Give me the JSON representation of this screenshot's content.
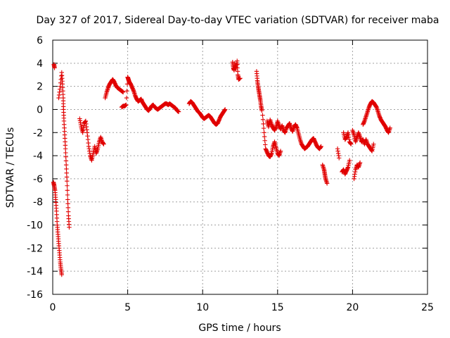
{
  "chart_data": {
    "type": "scatter",
    "title": "Day 327 of 2017, Sidereal Day-to-day VTEC variation (SDTVAR) for receiver maba",
    "xlabel": "GPS time / hours",
    "ylabel": "SDTVAR / TECUs",
    "xlim": [
      0,
      25
    ],
    "ylim": [
      -16,
      6
    ],
    "xticks": [
      0,
      5,
      10,
      15,
      20,
      25
    ],
    "yticks": [
      6,
      4,
      2,
      0,
      -2,
      -4,
      -6,
      -8,
      -10,
      -12,
      -14,
      -16
    ],
    "xtick_labels": [
      "0",
      "5",
      "10",
      "15",
      "20",
      "25"
    ],
    "ytick_labels": [
      "6",
      "4",
      "2",
      "0",
      "-2",
      "-4",
      "-6",
      "-8",
      "-10",
      "-12",
      "-14",
      "-16"
    ],
    "grid": true,
    "marker": "+",
    "marker_color": "#e00000",
    "series": [
      {
        "name": "SDTVAR",
        "segments": [
          [
            [
              0.05,
              -6.3
            ],
            [
              0.1,
              -6.6
            ],
            [
              0.15,
              -7.0
            ],
            [
              0.2,
              -7.8
            ],
            [
              0.25,
              -8.8
            ],
            [
              0.3,
              -10.0
            ],
            [
              0.35,
              -10.8
            ],
            [
              0.4,
              -11.6
            ],
            [
              0.45,
              -12.4
            ],
            [
              0.5,
              -13.2
            ],
            [
              0.55,
              -13.8
            ],
            [
              0.6,
              -14.3
            ]
          ],
          [
            [
              0.08,
              3.9
            ],
            [
              0.12,
              3.6
            ]
          ],
          [
            [
              0.4,
              1.0
            ],
            [
              0.5,
              2.0
            ],
            [
              0.6,
              3.2
            ],
            [
              0.65,
              2.2
            ],
            [
              0.7,
              1.0
            ],
            [
              0.72,
              0.0
            ],
            [
              0.75,
              -1.0
            ],
            [
              0.8,
              -2.2
            ],
            [
              0.85,
              -3.4
            ],
            [
              0.9,
              -4.8
            ],
            [
              0.95,
              -6.2
            ],
            [
              1.0,
              -7.8
            ],
            [
              1.05,
              -9.2
            ],
            [
              1.1,
              -10.2
            ]
          ],
          [
            [
              1.8,
              -0.8
            ],
            [
              1.9,
              -1.5
            ],
            [
              2.0,
              -2.0
            ],
            [
              2.1,
              -1.2
            ],
            [
              2.2,
              -1.0
            ],
            [
              2.3,
              -2.0
            ],
            [
              2.4,
              -3.2
            ],
            [
              2.5,
              -4.0
            ],
            [
              2.6,
              -4.4
            ],
            [
              2.7,
              -3.8
            ],
            [
              2.8,
              -3.2
            ],
            [
              2.9,
              -3.8
            ],
            [
              3.0,
              -3.4
            ],
            [
              3.1,
              -2.8
            ],
            [
              3.2,
              -2.4
            ],
            [
              3.3,
              -2.8
            ],
            [
              3.4,
              -3.0
            ]
          ],
          [
            [
              3.5,
              1.0
            ],
            [
              3.6,
              1.5
            ],
            [
              3.7,
              1.9
            ],
            [
              3.8,
              2.2
            ],
            [
              3.9,
              2.4
            ],
            [
              4.0,
              2.6
            ],
            [
              4.1,
              2.4
            ],
            [
              4.2,
              2.1
            ],
            [
              4.3,
              1.9
            ],
            [
              4.4,
              1.8
            ],
            [
              4.5,
              1.7
            ],
            [
              4.6,
              1.6
            ],
            [
              4.7,
              1.5
            ]
          ],
          [
            [
              4.6,
              0.2
            ],
            [
              4.7,
              0.3
            ],
            [
              4.8,
              0.3
            ],
            [
              4.9,
              0.4
            ],
            [
              5.0,
              2.8
            ],
            [
              5.05,
              2.6
            ],
            [
              5.1,
              2.4
            ],
            [
              5.2,
              2.2
            ],
            [
              5.3,
              1.9
            ],
            [
              5.4,
              1.6
            ],
            [
              5.5,
              1.2
            ],
            [
              5.6,
              0.9
            ],
            [
              5.7,
              0.7
            ],
            [
              5.8,
              0.8
            ],
            [
              5.9,
              0.9
            ],
            [
              6.0,
              0.6
            ],
            [
              6.1,
              0.4
            ],
            [
              6.2,
              0.2
            ],
            [
              6.3,
              0.0
            ],
            [
              6.4,
              -0.1
            ],
            [
              6.5,
              0.1
            ],
            [
              6.6,
              0.3
            ],
            [
              6.7,
              0.4
            ],
            [
              6.8,
              0.2
            ],
            [
              6.9,
              0.1
            ],
            [
              7.0,
              0.0
            ],
            [
              7.1,
              0.1
            ],
            [
              7.2,
              0.2
            ],
            [
              7.3,
              0.3
            ],
            [
              7.4,
              0.4
            ],
            [
              7.5,
              0.5
            ],
            [
              7.6,
              0.5
            ],
            [
              7.7,
              0.4
            ],
            [
              7.8,
              0.5
            ],
            [
              7.9,
              0.4
            ],
            [
              8.0,
              0.3
            ],
            [
              8.1,
              0.2
            ],
            [
              8.2,
              0.1
            ],
            [
              8.3,
              -0.1
            ],
            [
              8.4,
              -0.2
            ]
          ],
          [
            [
              9.1,
              0.5
            ],
            [
              9.2,
              0.7
            ],
            [
              9.3,
              0.6
            ],
            [
              9.4,
              0.4
            ],
            [
              9.5,
              0.2
            ],
            [
              9.6,
              0.0
            ],
            [
              9.7,
              -0.2
            ],
            [
              9.8,
              -0.3
            ],
            [
              9.9,
              -0.5
            ],
            [
              10.0,
              -0.7
            ],
            [
              10.1,
              -0.8
            ],
            [
              10.2,
              -0.7
            ],
            [
              10.3,
              -0.6
            ],
            [
              10.4,
              -0.5
            ],
            [
              10.5,
              -0.6
            ],
            [
              10.6,
              -0.8
            ],
            [
              10.7,
              -1.0
            ],
            [
              10.8,
              -1.2
            ],
            [
              10.9,
              -1.3
            ],
            [
              11.0,
              -1.2
            ],
            [
              11.1,
              -0.9
            ],
            [
              11.2,
              -0.6
            ],
            [
              11.3,
              -0.4
            ],
            [
              11.4,
              -0.2
            ],
            [
              11.5,
              0.0
            ]
          ],
          [
            [
              12.0,
              4.1
            ],
            [
              12.05,
              3.6
            ],
            [
              12.1,
              3.4
            ],
            [
              12.15,
              4.0
            ],
            [
              12.2,
              3.5
            ],
            [
              12.3,
              4.2
            ],
            [
              12.35,
              3.0
            ],
            [
              12.4,
              2.6
            ],
            [
              12.5,
              2.7
            ]
          ],
          [
            [
              13.6,
              3.3
            ],
            [
              13.65,
              2.5
            ],
            [
              13.7,
              2.0
            ],
            [
              13.75,
              1.6
            ],
            [
              13.8,
              1.2
            ],
            [
              13.85,
              0.8
            ],
            [
              13.9,
              0.3
            ],
            [
              13.95,
              -0.1
            ]
          ],
          [
            [
              14.0,
              -0.5
            ],
            [
              14.1,
              -2.0
            ],
            [
              14.2,
              -3.4
            ],
            [
              14.3,
              -3.7
            ],
            [
              14.4,
              -4.0
            ],
            [
              14.5,
              -4.1
            ],
            [
              14.6,
              -3.8
            ],
            [
              14.7,
              -3.2
            ],
            [
              14.8,
              -2.8
            ],
            [
              14.9,
              -3.3
            ],
            [
              15.0,
              -3.8
            ],
            [
              15.1,
              -4.0
            ],
            [
              15.2,
              -3.6
            ]
          ],
          [
            [
              14.3,
              -1.0
            ],
            [
              14.4,
              -1.5
            ],
            [
              14.5,
              -0.9
            ],
            [
              14.6,
              -1.3
            ],
            [
              14.7,
              -1.6
            ],
            [
              14.8,
              -1.8
            ],
            [
              14.9,
              -1.5
            ],
            [
              15.0,
              -1.0
            ],
            [
              15.1,
              -1.4
            ],
            [
              15.2,
              -1.7
            ],
            [
              15.3,
              -1.4
            ],
            [
              15.4,
              -1.8
            ],
            [
              15.5,
              -2.0
            ],
            [
              15.6,
              -1.6
            ],
            [
              15.7,
              -1.4
            ],
            [
              15.8,
              -1.2
            ],
            [
              15.9,
              -1.6
            ],
            [
              16.0,
              -1.9
            ],
            [
              16.1,
              -1.5
            ],
            [
              16.2,
              -1.3
            ],
            [
              16.3,
              -1.6
            ],
            [
              16.4,
              -2.1
            ],
            [
              16.5,
              -2.6
            ],
            [
              16.6,
              -3.0
            ],
            [
              16.7,
              -3.2
            ],
            [
              16.8,
              -3.4
            ],
            [
              16.9,
              -3.3
            ],
            [
              17.0,
              -3.2
            ],
            [
              17.1,
              -3.0
            ],
            [
              17.2,
              -2.8
            ],
            [
              17.3,
              -2.6
            ],
            [
              17.4,
              -2.5
            ],
            [
              17.5,
              -2.8
            ],
            [
              17.6,
              -3.1
            ],
            [
              17.7,
              -3.3
            ],
            [
              17.8,
              -3.4
            ],
            [
              17.9,
              -3.2
            ]
          ],
          [
            [
              18.0,
              -4.8
            ],
            [
              18.1,
              -5.2
            ],
            [
              18.15,
              -5.6
            ],
            [
              18.2,
              -6.0
            ],
            [
              18.3,
              -6.4
            ]
          ],
          [
            [
              19.0,
              -3.4
            ],
            [
              19.1,
              -4.2
            ]
          ],
          [
            [
              19.3,
              -5.4
            ],
            [
              19.4,
              -5.2
            ],
            [
              19.5,
              -5.6
            ],
            [
              19.6,
              -5.3
            ],
            [
              19.7,
              -5.0
            ],
            [
              19.8,
              -4.4
            ]
          ],
          [
            [
              19.4,
              -2.0
            ],
            [
              19.5,
              -2.6
            ],
            [
              19.6,
              -2.4
            ],
            [
              19.7,
              -2.0
            ],
            [
              19.8,
              -2.8
            ],
            [
              19.9,
              -3.0
            ]
          ],
          [
            [
              20.1,
              -6.0
            ],
            [
              20.2,
              -5.2
            ],
            [
              20.3,
              -4.8
            ],
            [
              20.4,
              -5.0
            ],
            [
              20.5,
              -4.6
            ]
          ],
          [
            [
              20.0,
              -1.8
            ],
            [
              20.1,
              -2.2
            ],
            [
              20.2,
              -2.8
            ],
            [
              20.3,
              -2.4
            ],
            [
              20.4,
              -2.0
            ],
            [
              20.5,
              -2.4
            ],
            [
              20.6,
              -2.8
            ],
            [
              20.7,
              -2.6
            ],
            [
              20.8,
              -3.0
            ],
            [
              20.9,
              -2.6
            ],
            [
              21.0,
              -3.0
            ],
            [
              21.1,
              -3.2
            ],
            [
              21.2,
              -3.4
            ],
            [
              21.3,
              -3.6
            ],
            [
              21.4,
              -3.0
            ]
          ],
          [
            [
              20.7,
              -1.3
            ],
            [
              20.8,
              -1.0
            ],
            [
              20.9,
              -0.6
            ],
            [
              21.0,
              -0.2
            ],
            [
              21.1,
              0.2
            ],
            [
              21.2,
              0.5
            ],
            [
              21.3,
              0.7
            ],
            [
              21.4,
              0.6
            ],
            [
              21.5,
              0.4
            ],
            [
              21.6,
              0.2
            ],
            [
              21.7,
              -0.2
            ],
            [
              21.8,
              -0.6
            ],
            [
              21.9,
              -0.9
            ],
            [
              22.0,
              -1.1
            ],
            [
              22.1,
              -1.3
            ],
            [
              22.2,
              -1.5
            ],
            [
              22.3,
              -1.8
            ],
            [
              22.4,
              -2.0
            ],
            [
              22.5,
              -1.6
            ]
          ]
        ]
      }
    ]
  }
}
